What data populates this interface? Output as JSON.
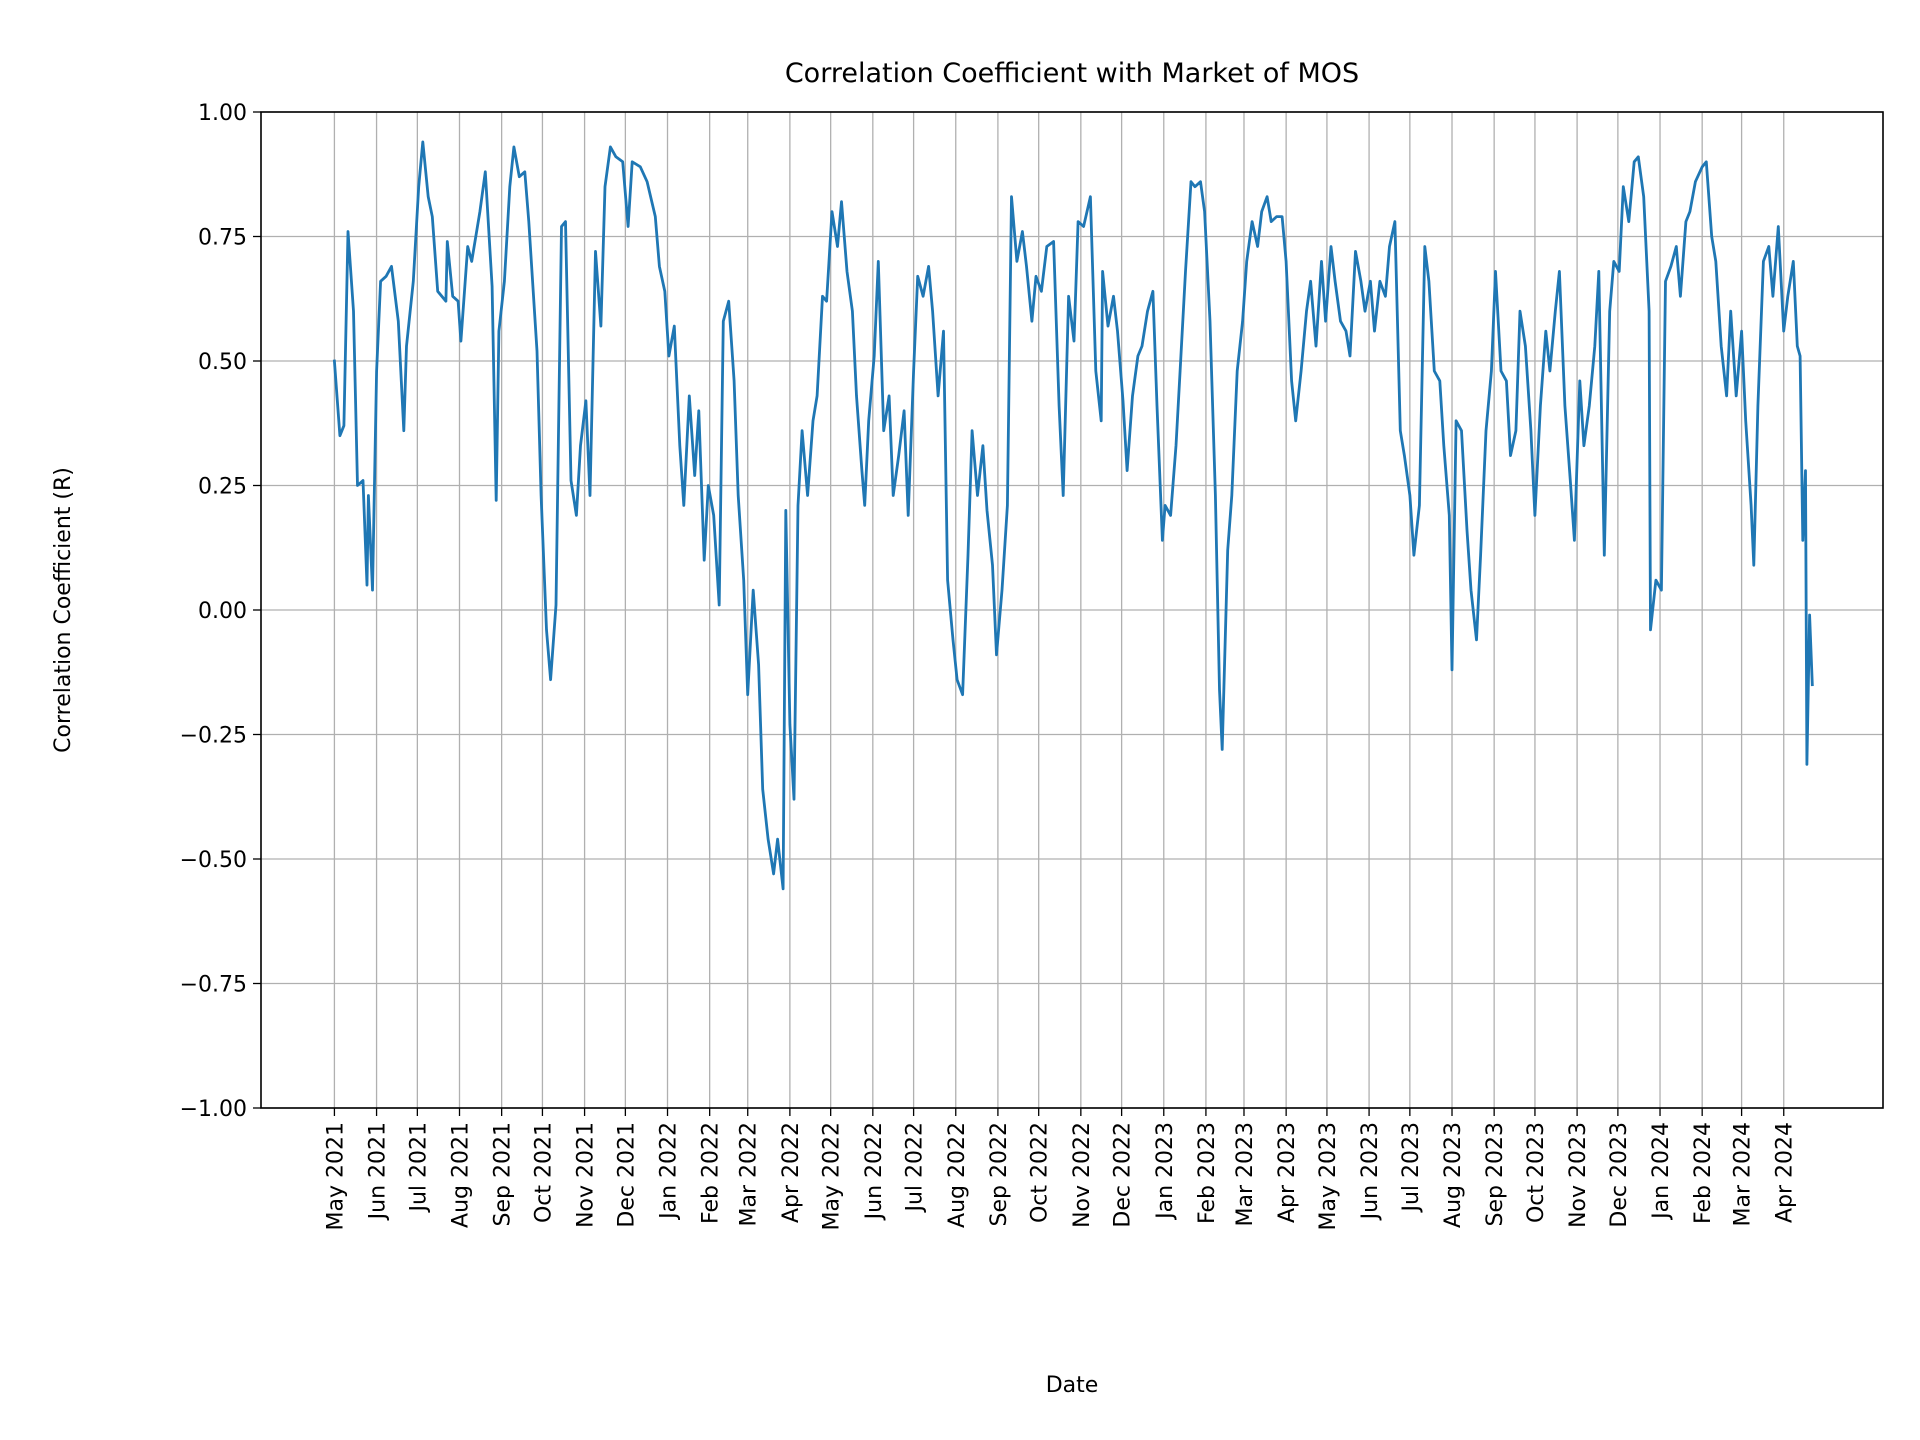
{
  "chart_data": {
    "type": "line",
    "title": "Correlation Coefficient with Market of MOS",
    "xlabel": "Date",
    "ylabel": "Correlation Coefficient (R)",
    "xlim": [
      "2021-03-08",
      "2024-06-13"
    ],
    "ylim": [
      -1.0,
      1.0
    ],
    "grid": true,
    "line_color": "#1f77b4",
    "grid_color": "#b0b0b0",
    "yticks": [
      {
        "value": -1.0,
        "label": "−1.00"
      },
      {
        "value": -0.75,
        "label": "−0.75"
      },
      {
        "value": -0.5,
        "label": "−0.50"
      },
      {
        "value": -0.25,
        "label": "−0.25"
      },
      {
        "value": 0.0,
        "label": "0.00"
      },
      {
        "value": 0.25,
        "label": "0.25"
      },
      {
        "value": 0.5,
        "label": "0.50"
      },
      {
        "value": 0.75,
        "label": "0.75"
      },
      {
        "value": 1.0,
        "label": "1.00"
      }
    ],
    "xticks": [
      {
        "date": "2021-05-01",
        "label": "May 2021"
      },
      {
        "date": "2021-06-01",
        "label": "Jun 2021"
      },
      {
        "date": "2021-07-01",
        "label": "Jul 2021"
      },
      {
        "date": "2021-08-01",
        "label": "Aug 2021"
      },
      {
        "date": "2021-09-01",
        "label": "Sep 2021"
      },
      {
        "date": "2021-10-01",
        "label": "Oct 2021"
      },
      {
        "date": "2021-11-01",
        "label": "Nov 2021"
      },
      {
        "date": "2021-12-01",
        "label": "Dec 2021"
      },
      {
        "date": "2022-01-01",
        "label": "Jan 2022"
      },
      {
        "date": "2022-02-01",
        "label": "Feb 2022"
      },
      {
        "date": "2022-03-01",
        "label": "Mar 2022"
      },
      {
        "date": "2022-04-01",
        "label": "Apr 2022"
      },
      {
        "date": "2022-05-01",
        "label": "May 2022"
      },
      {
        "date": "2022-06-01",
        "label": "Jun 2022"
      },
      {
        "date": "2022-07-01",
        "label": "Jul 2022"
      },
      {
        "date": "2022-08-01",
        "label": "Aug 2022"
      },
      {
        "date": "2022-09-01",
        "label": "Sep 2022"
      },
      {
        "date": "2022-10-01",
        "label": "Oct 2022"
      },
      {
        "date": "2022-11-01",
        "label": "Nov 2022"
      },
      {
        "date": "2022-12-01",
        "label": "Dec 2022"
      },
      {
        "date": "2023-01-01",
        "label": "Jan 2023"
      },
      {
        "date": "2023-02-01",
        "label": "Feb 2023"
      },
      {
        "date": "2023-03-01",
        "label": "Mar 2023"
      },
      {
        "date": "2023-04-01",
        "label": "Apr 2023"
      },
      {
        "date": "2023-05-01",
        "label": "May 2023"
      },
      {
        "date": "2023-06-01",
        "label": "Jun 2023"
      },
      {
        "date": "2023-07-01",
        "label": "Jul 2023"
      },
      {
        "date": "2023-08-01",
        "label": "Aug 2023"
      },
      {
        "date": "2023-09-01",
        "label": "Sep 2023"
      },
      {
        "date": "2023-10-01",
        "label": "Oct 2023"
      },
      {
        "date": "2023-11-01",
        "label": "Nov 2023"
      },
      {
        "date": "2023-12-01",
        "label": "Dec 2023"
      },
      {
        "date": "2024-01-01",
        "label": "Jan 2024"
      },
      {
        "date": "2024-02-01",
        "label": "Feb 2024"
      },
      {
        "date": "2024-03-01",
        "label": "Mar 2024"
      },
      {
        "date": "2024-04-01",
        "label": "Apr 2024"
      }
    ],
    "series": [
      {
        "x": [
          "2021-05-01",
          "2021-05-05",
          "2021-05-08",
          "2021-05-11",
          "2021-05-15",
          "2021-05-18",
          "2021-05-22",
          "2021-05-25",
          "2021-05-26",
          "2021-05-29",
          "2021-06-01",
          "2021-06-04",
          "2021-06-08",
          "2021-06-12",
          "2021-06-17",
          "2021-06-21",
          "2021-06-23",
          "2021-06-28",
          "2021-07-02",
          "2021-07-05",
          "2021-07-09",
          "2021-07-12",
          "2021-07-16",
          "2021-07-22",
          "2021-07-23",
          "2021-07-27",
          "2021-07-31",
          "2021-08-02",
          "2021-08-07",
          "2021-08-10",
          "2021-08-16",
          "2021-08-20",
          "2021-08-25",
          "2021-08-28",
          "2021-08-30",
          "2021-09-03",
          "2021-09-07",
          "2021-09-10",
          "2021-09-14",
          "2021-09-18",
          "2021-09-21",
          "2021-09-27",
          "2021-09-30",
          "2021-10-04",
          "2021-10-07",
          "2021-10-11",
          "2021-10-15",
          "2021-10-18",
          "2021-10-22",
          "2021-10-26",
          "2021-10-29",
          "2021-11-02",
          "2021-11-05",
          "2021-11-09",
          "2021-11-13",
          "2021-11-16",
          "2021-11-20",
          "2021-11-24",
          "2021-11-29",
          "2021-12-03",
          "2021-12-06",
          "2021-12-12",
          "2021-12-17",
          "2021-12-23",
          "2021-12-26",
          "2021-12-30",
          "2022-01-02",
          "2022-01-06",
          "2022-01-10",
          "2022-01-13",
          "2022-01-17",
          "2022-01-21",
          "2022-01-24",
          "2022-01-28",
          "2022-01-31",
          "2022-02-04",
          "2022-02-08",
          "2022-02-11",
          "2022-02-15",
          "2022-02-19",
          "2022-02-22",
          "2022-02-26",
          "2022-03-01",
          "2022-03-05",
          "2022-03-09",
          "2022-03-12",
          "2022-03-16",
          "2022-03-20",
          "2022-03-23",
          "2022-03-27",
          "2022-03-29",
          "2022-04-01",
          "2022-04-04",
          "2022-04-07",
          "2022-04-10",
          "2022-04-14",
          "2022-04-18",
          "2022-04-21",
          "2022-04-25",
          "2022-04-28",
          "2022-05-02",
          "2022-05-06",
          "2022-05-09",
          "2022-05-13",
          "2022-05-17",
          "2022-05-20",
          "2022-05-24",
          "2022-05-26",
          "2022-05-29",
          "2022-06-02",
          "2022-06-05",
          "2022-06-09",
          "2022-06-13",
          "2022-06-16",
          "2022-06-20",
          "2022-06-24",
          "2022-06-27",
          "2022-07-01",
          "2022-07-04",
          "2022-07-08",
          "2022-07-12",
          "2022-07-15",
          "2022-07-19",
          "2022-07-23",
          "2022-07-26",
          "2022-07-30",
          "2022-08-02",
          "2022-08-06",
          "2022-08-10",
          "2022-08-13",
          "2022-08-17",
          "2022-08-21",
          "2022-08-24",
          "2022-08-28",
          "2022-08-31",
          "2022-09-04",
          "2022-09-08",
          "2022-09-11",
          "2022-09-15",
          "2022-09-19",
          "2022-09-22",
          "2022-09-26",
          "2022-09-29",
          "2022-10-03",
          "2022-10-07",
          "2022-10-12",
          "2022-10-16",
          "2022-10-19",
          "2022-10-23",
          "2022-10-27",
          "2022-10-30",
          "2022-11-03",
          "2022-11-08",
          "2022-11-12",
          "2022-11-16",
          "2022-11-17",
          "2022-11-21",
          "2022-11-25",
          "2022-11-28",
          "2022-12-02",
          "2022-12-05",
          "2022-12-09",
          "2022-12-13",
          "2022-12-16",
          "2022-12-20",
          "2022-12-24",
          "2022-12-27",
          "2022-12-31",
          "2023-01-02",
          "2023-01-06",
          "2023-01-10",
          "2023-01-13",
          "2023-01-17",
          "2023-01-21",
          "2023-01-24",
          "2023-01-28",
          "2023-01-31",
          "2023-02-04",
          "2023-02-08",
          "2023-02-11",
          "2023-02-13",
          "2023-02-17",
          "2023-02-20",
          "2023-02-24",
          "2023-02-28",
          "2023-03-03",
          "2023-03-07",
          "2023-03-11",
          "2023-03-14",
          "2023-03-18",
          "2023-03-21",
          "2023-03-25",
          "2023-03-29",
          "2023-04-01",
          "2023-04-05",
          "2023-04-08",
          "2023-04-12",
          "2023-04-16",
          "2023-04-19",
          "2023-04-23",
          "2023-04-27",
          "2023-04-30",
          "2023-05-04",
          "2023-05-07",
          "2023-05-11",
          "2023-05-15",
          "2023-05-18",
          "2023-05-22",
          "2023-05-26",
          "2023-05-29",
          "2023-06-02",
          "2023-06-05",
          "2023-06-09",
          "2023-06-13",
          "2023-06-16",
          "2023-06-20",
          "2023-06-24",
          "2023-06-27",
          "2023-07-01",
          "2023-07-04",
          "2023-07-08",
          "2023-07-12",
          "2023-07-15",
          "2023-07-19",
          "2023-07-23",
          "2023-07-26",
          "2023-07-30",
          "2023-08-01",
          "2023-08-04",
          "2023-08-08",
          "2023-08-12",
          "2023-08-15",
          "2023-08-19",
          "2023-08-22",
          "2023-08-26",
          "2023-08-30",
          "2023-09-02",
          "2023-09-06",
          "2023-09-10",
          "2023-09-13",
          "2023-09-17",
          "2023-09-20",
          "2023-09-24",
          "2023-09-28",
          "2023-10-01",
          "2023-10-05",
          "2023-10-09",
          "2023-10-12",
          "2023-10-16",
          "2023-10-19",
          "2023-10-23",
          "2023-10-27",
          "2023-10-30",
          "2023-11-03",
          "2023-11-06",
          "2023-11-10",
          "2023-11-14",
          "2023-11-17",
          "2023-11-21",
          "2023-11-25",
          "2023-11-28",
          "2023-12-02",
          "2023-12-05",
          "2023-12-09",
          "2023-12-13",
          "2023-12-16",
          "2023-12-20",
          "2023-12-24",
          "2023-12-25",
          "2023-12-29",
          "2024-01-02",
          "2024-01-05",
          "2024-01-09",
          "2024-01-13",
          "2024-01-16",
          "2024-01-20",
          "2024-01-23",
          "2024-01-27",
          "2024-02-01",
          "2024-02-04",
          "2024-02-08",
          "2024-02-11",
          "2024-02-15",
          "2024-02-19",
          "2024-02-22",
          "2024-02-26",
          "2024-03-01",
          "2024-03-04",
          "2024-03-08",
          "2024-03-10",
          "2024-03-13",
          "2024-03-17",
          "2024-03-21",
          "2024-03-24",
          "2024-03-28",
          "2024-04-01",
          "2024-04-04",
          "2024-04-08",
          "2024-04-11",
          "2024-04-13",
          "2024-04-15",
          "2024-04-17",
          "2024-04-18",
          "2024-04-20",
          "2024-04-22"
        ],
        "y": [
          0.5,
          0.35,
          0.37,
          0.76,
          0.6,
          0.25,
          0.26,
          0.05,
          0.23,
          0.04,
          0.48,
          0.66,
          0.67,
          0.69,
          0.58,
          0.36,
          0.53,
          0.66,
          0.85,
          0.94,
          0.83,
          0.79,
          0.64,
          0.62,
          0.74,
          0.63,
          0.62,
          0.54,
          0.73,
          0.7,
          0.8,
          0.88,
          0.65,
          0.22,
          0.56,
          0.66,
          0.85,
          0.93,
          0.87,
          0.88,
          0.78,
          0.52,
          0.23,
          -0.04,
          -0.14,
          0.01,
          0.77,
          0.78,
          0.26,
          0.19,
          0.33,
          0.42,
          0.23,
          0.72,
          0.57,
          0.85,
          0.93,
          0.91,
          0.9,
          0.77,
          0.9,
          0.89,
          0.86,
          0.79,
          0.69,
          0.64,
          0.51,
          0.57,
          0.33,
          0.21,
          0.43,
          0.27,
          0.4,
          0.1,
          0.25,
          0.19,
          0.01,
          0.58,
          0.62,
          0.46,
          0.23,
          0.06,
          -0.17,
          0.04,
          -0.11,
          -0.36,
          -0.46,
          -0.53,
          -0.46,
          -0.56,
          0.2,
          -0.23,
          -0.38,
          0.21,
          0.36,
          0.23,
          0.38,
          0.43,
          0.63,
          0.62,
          0.8,
          0.73,
          0.82,
          0.68,
          0.6,
          0.43,
          0.28,
          0.21,
          0.38,
          0.51,
          0.7,
          0.36,
          0.43,
          0.23,
          0.31,
          0.4,
          0.19,
          0.48,
          0.67,
          0.63,
          0.69,
          0.6,
          0.43,
          0.56,
          0.06,
          -0.06,
          -0.14,
          -0.17,
          0.11,
          0.36,
          0.23,
          0.33,
          0.2,
          0.09,
          -0.09,
          0.04,
          0.21,
          0.83,
          0.7,
          0.76,
          0.69,
          0.58,
          0.67,
          0.64,
          0.73,
          0.74,
          0.41,
          0.23,
          0.63,
          0.54,
          0.78,
          0.77,
          0.83,
          0.48,
          0.38,
          0.68,
          0.57,
          0.63,
          0.56,
          0.42,
          0.28,
          0.43,
          0.51,
          0.53,
          0.6,
          0.64,
          0.41,
          0.14,
          0.21,
          0.19,
          0.33,
          0.48,
          0.68,
          0.86,
          0.85,
          0.86,
          0.8,
          0.58,
          0.23,
          -0.16,
          -0.28,
          0.12,
          0.23,
          0.48,
          0.58,
          0.7,
          0.78,
          0.73,
          0.8,
          0.83,
          0.78,
          0.79,
          0.79,
          0.7,
          0.46,
          0.38,
          0.48,
          0.6,
          0.66,
          0.53,
          0.7,
          0.58,
          0.73,
          0.66,
          0.58,
          0.56,
          0.51,
          0.72,
          0.66,
          0.6,
          0.66,
          0.56,
          0.66,
          0.63,
          0.73,
          0.78,
          0.36,
          0.31,
          0.23,
          0.11,
          0.21,
          0.73,
          0.66,
          0.48,
          0.46,
          0.33,
          0.19,
          -0.12,
          0.38,
          0.36,
          0.16,
          0.04,
          -0.06,
          0.11,
          0.36,
          0.48,
          0.68,
          0.48,
          0.46,
          0.31,
          0.36,
          0.6,
          0.53,
          0.36,
          0.19,
          0.41,
          0.56,
          0.48,
          0.6,
          0.68,
          0.41,
          0.26,
          0.14,
          0.46,
          0.33,
          0.41,
          0.53,
          0.68,
          0.11,
          0.6,
          0.7,
          0.68,
          0.85,
          0.78,
          0.9,
          0.91,
          0.83,
          0.6,
          -0.04,
          0.06,
          0.04,
          0.66,
          0.69,
          0.73,
          0.63,
          0.78,
          0.8,
          0.86,
          0.89,
          0.9,
          0.75,
          0.7,
          0.53,
          0.43,
          0.6,
          0.43,
          0.56,
          0.38,
          0.21,
          0.09,
          0.41,
          0.7,
          0.73,
          0.63,
          0.77,
          0.56,
          0.63,
          0.7,
          0.53,
          0.51,
          0.14,
          0.28,
          -0.31,
          -0.01,
          -0.15
        ]
      }
    ]
  }
}
